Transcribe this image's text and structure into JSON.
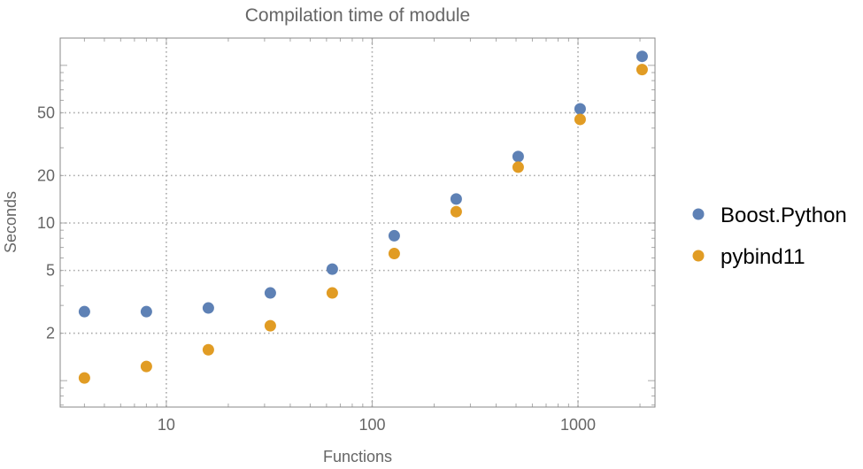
{
  "chart_data": {
    "type": "scatter",
    "title": "Compilation time of module",
    "xlabel": "Functions",
    "ylabel": "Seconds",
    "xscale": "log",
    "yscale": "log",
    "xlim": [
      3.05,
      2366
    ],
    "ylim": [
      0.68,
      149
    ],
    "grid": true,
    "legend_position": "right",
    "x_ticks": [
      10,
      100,
      1000
    ],
    "x_tick_labels": [
      "10",
      "100",
      "1000"
    ],
    "y_ticks": [
      2,
      5,
      10,
      20,
      50
    ],
    "y_tick_labels": [
      "2",
      "5",
      "10",
      "20",
      "50"
    ],
    "x": [
      4,
      8,
      16,
      32,
      64,
      128,
      256,
      512,
      1024,
      2048
    ],
    "series": [
      {
        "name": "Boost.Python",
        "color": "#5E81B5",
        "values": [
          2.74,
          2.74,
          2.89,
          3.6,
          5.1,
          8.3,
          14.2,
          26.4,
          53,
          114
        ]
      },
      {
        "name": "pybind11",
        "color": "#E19C24",
        "values": [
          1.04,
          1.23,
          1.57,
          2.23,
          3.6,
          6.4,
          11.8,
          22.6,
          45.4,
          94
        ]
      }
    ]
  }
}
